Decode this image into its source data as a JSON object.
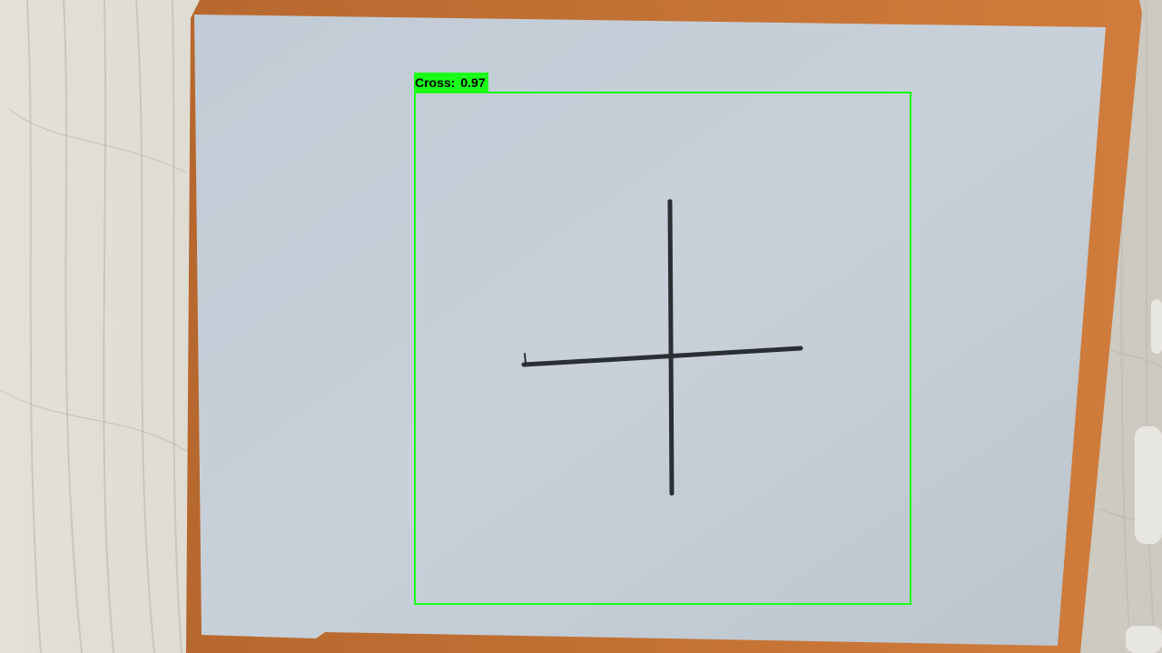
{
  "detection": {
    "class_label": "Cross:",
    "confidence": "0.97"
  },
  "colors": {
    "box": "#1aff1a",
    "label_text": "#000000",
    "marker_stroke": "#2b2f33",
    "paper": "#c6ced6",
    "board": "#c8753a",
    "floor": "#dcd9d1"
  },
  "scene": {
    "drawn_shape": "cross"
  }
}
